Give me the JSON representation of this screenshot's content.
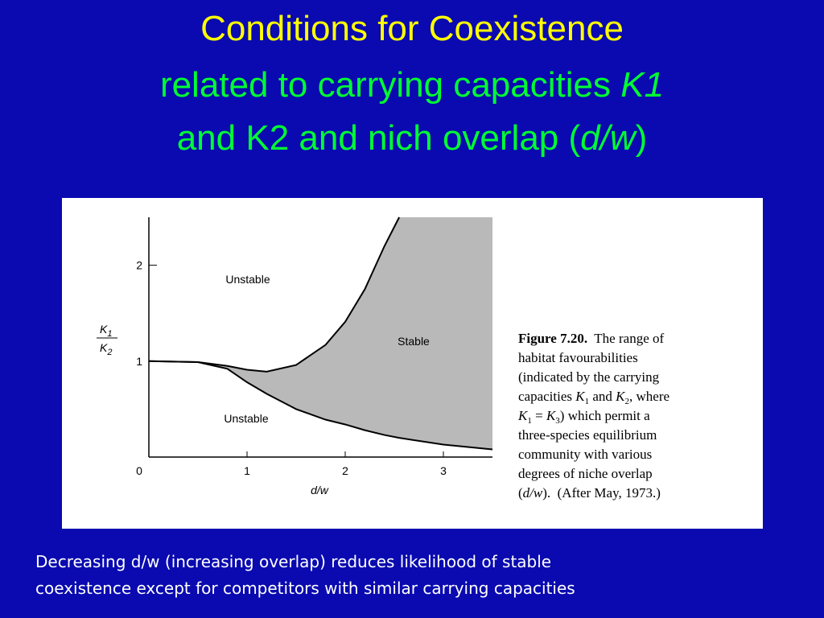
{
  "header": {
    "title": "Conditions for Coexistence",
    "subtitle_lines": [
      [
        "related to carrying capacities ",
        "K1"
      ],
      [
        "and K2 and nich overlap (",
        "d/w",
        ")"
      ]
    ]
  },
  "chart_data": {
    "type": "area-between",
    "x": [
      0,
      0.5,
      0.8,
      1,
      1.2,
      1.5,
      1.8,
      2,
      2.2,
      2.4,
      2.55,
      3,
      3.5
    ],
    "series": [
      {
        "values": [
          1,
          0.99,
          0.95,
          0.91,
          0.89,
          0.96,
          1.17,
          1.41,
          1.75,
          2.2,
          2.5,
          null,
          null
        ],
        "color": "#000000"
      },
      {
        "values": [
          1,
          0.99,
          0.92,
          0.78,
          0.66,
          0.5,
          0.39,
          0.34,
          0.28,
          0.23,
          0.2,
          0.13,
          0.08
        ],
        "color": "#000000"
      }
    ],
    "fill": "#b9b9b9",
    "xlim": [
      0,
      3.5
    ],
    "ylim": [
      0,
      2.5
    ],
    "xticks": [
      0,
      1,
      2,
      3
    ],
    "yticks": [
      1,
      2
    ],
    "xlabel": "d/w",
    "ylabel": {
      "top": [
        "K",
        "1"
      ],
      "bottom": [
        "K",
        "2"
      ]
    },
    "annotations": [
      "Unstable",
      "Stable",
      "Unstable"
    ]
  },
  "caption": {
    "lines": [
      [
        "Figure 7.20.",
        "  The range of"
      ],
      [
        "habitat favourabilities"
      ],
      [
        "(indicated by the carrying"
      ],
      [
        "capacities ",
        "K",
        "1",
        " and ",
        "K",
        "2",
        ", where"
      ],
      [
        "K",
        "1",
        " = ",
        "K",
        "3",
        ") which permit a"
      ],
      [
        "three-species equilibrium"
      ],
      [
        "community with various"
      ],
      [
        "degrees of niche overlap"
      ],
      [
        "(",
        "d/w",
        ").  (After May, 1973.)"
      ]
    ]
  },
  "footer": {
    "lines": [
      "Decreasing d/w (increasing overlap) reduces likelihood of stable",
      "coexistence except for competitors with similar carrying capacities"
    ]
  }
}
